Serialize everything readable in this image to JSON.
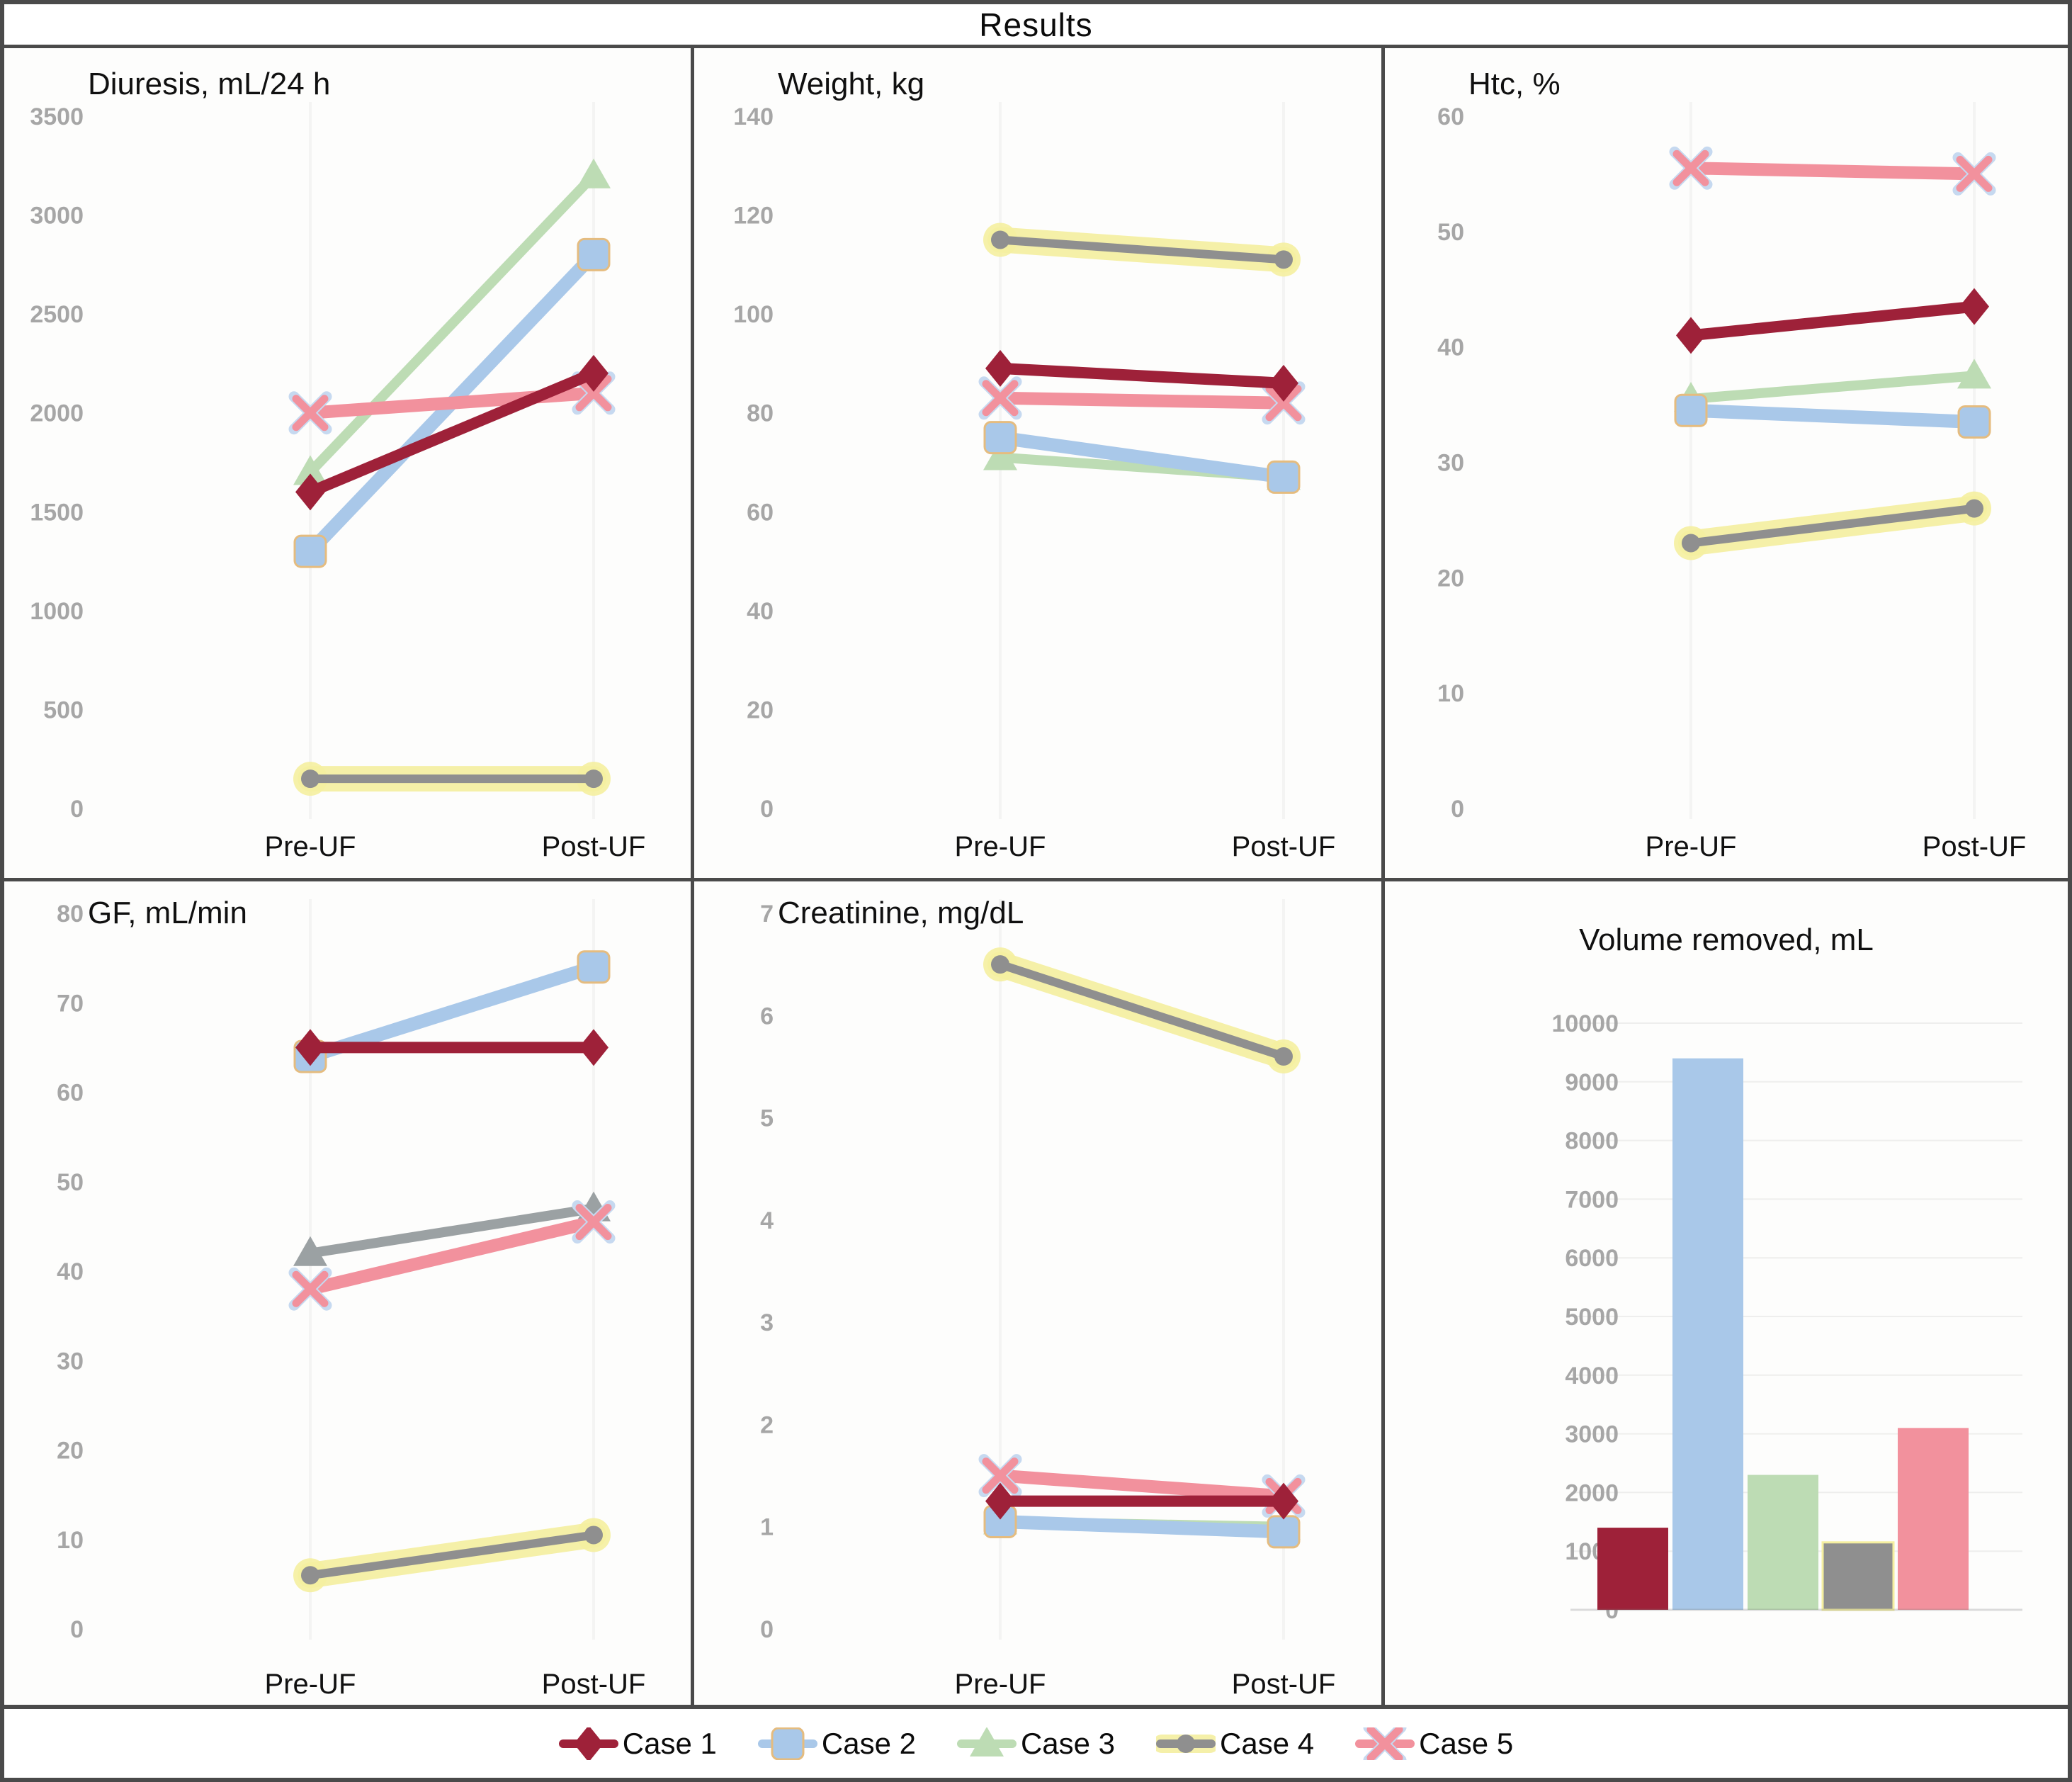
{
  "figure": {
    "title": "Results"
  },
  "legend": {
    "items": [
      {
        "label": "Case 1",
        "color": "#9e2139",
        "marker": "diamond"
      },
      {
        "label": "Case 2",
        "color": "#a9c8e9",
        "marker": "square"
      },
      {
        "label": "Case 3",
        "color": "#bddcb4",
        "marker": "triangle"
      },
      {
        "label": "Case 4",
        "color": "#8f8f8f",
        "marker": "circle",
        "highlight": "#f5efa0"
      },
      {
        "label": "Case 5",
        "color": "#f2919d",
        "marker": "x"
      }
    ]
  },
  "colors": {
    "border": "#4a4a4a",
    "tick_label": "#a6a6a6",
    "category_label": "#111111",
    "case2_marker_outline": "#e5bc7f",
    "case5_x_backing": "#c6d9f0",
    "case4_highlight": "#f5efa0",
    "gf_case3_rendered": "#9ba1a3"
  },
  "chart_data": [
    {
      "type": "line",
      "title": "Diuresis, mL/24 h",
      "x": [
        "Pre-UF",
        "Post-UF"
      ],
      "ylim": [
        0,
        3500
      ],
      "ytick_step": 500,
      "yticks": [
        0,
        500,
        1000,
        1500,
        2000,
        2500,
        3000,
        3500
      ],
      "grid": false,
      "legend_position": "bottom-shared",
      "series": [
        {
          "name": "Case 1",
          "values": [
            1600,
            2200
          ]
        },
        {
          "name": "Case 2",
          "values": [
            1300,
            2800
          ]
        },
        {
          "name": "Case 3",
          "values": [
            1700,
            3200
          ]
        },
        {
          "name": "Case 4",
          "values": [
            150,
            150
          ]
        },
        {
          "name": "Case 5",
          "values": [
            2000,
            2100
          ]
        }
      ]
    },
    {
      "type": "line",
      "title": "Weight, kg",
      "x": [
        "Pre-UF",
        "Post-UF"
      ],
      "ylim": [
        0,
        140
      ],
      "ytick_step": 20,
      "yticks": [
        0,
        20,
        40,
        60,
        80,
        100,
        120,
        140
      ],
      "grid": false,
      "series": [
        {
          "name": "Case 1",
          "values": [
            89,
            86
          ]
        },
        {
          "name": "Case 2",
          "values": [
            75,
            67
          ]
        },
        {
          "name": "Case 3",
          "values": [
            71,
            67
          ]
        },
        {
          "name": "Case 4",
          "values": [
            115,
            111
          ]
        },
        {
          "name": "Case 5",
          "values": [
            83,
            82
          ]
        }
      ]
    },
    {
      "type": "line",
      "title": "Htc, %",
      "x": [
        "Pre-UF",
        "Post-UF"
      ],
      "ylim": [
        0,
        60
      ],
      "ytick_step": 10,
      "yticks": [
        0,
        10,
        20,
        30,
        40,
        50,
        60
      ],
      "grid": false,
      "series": [
        {
          "name": "Case 1",
          "values": [
            41,
            43.5
          ]
        },
        {
          "name": "Case 2",
          "values": [
            34.5,
            33.5
          ]
        },
        {
          "name": "Case 3",
          "values": [
            35.5,
            37.5
          ]
        },
        {
          "name": "Case 4",
          "values": [
            23,
            26
          ]
        },
        {
          "name": "Case 5",
          "values": [
            55.5,
            55
          ]
        }
      ]
    },
    {
      "type": "line",
      "title": "GF, mL/min",
      "x": [
        "Pre-UF",
        "Post-UF"
      ],
      "ylim": [
        0,
        80
      ],
      "ytick_step": 10,
      "yticks": [
        0,
        10,
        20,
        30,
        40,
        50,
        60,
        70,
        80
      ],
      "grid": false,
      "series": [
        {
          "name": "Case 1",
          "values": [
            65,
            65
          ]
        },
        {
          "name": "Case 2",
          "values": [
            64,
            74
          ]
        },
        {
          "name": "Case 3",
          "values": [
            42,
            47
          ],
          "color": "#9ba1a3"
        },
        {
          "name": "Case 4",
          "values": [
            6,
            10.5
          ]
        },
        {
          "name": "Case 5",
          "values": [
            38,
            45.5
          ]
        }
      ]
    },
    {
      "type": "line",
      "title": "Creatinine, mg/dL",
      "x": [
        "Pre-UF",
        "Post-UF"
      ],
      "ylim": [
        0,
        7
      ],
      "ytick_step": 1,
      "yticks": [
        0,
        1,
        2,
        3,
        4,
        5,
        6,
        7
      ],
      "grid": false,
      "series": [
        {
          "name": "Case 1",
          "values": [
            1.25,
            1.25
          ]
        },
        {
          "name": "Case 2",
          "values": [
            1.05,
            0.95
          ]
        },
        {
          "name": "Case 3",
          "values": [
            1.05,
            1.0
          ]
        },
        {
          "name": "Case 4",
          "values": [
            6.5,
            5.6
          ]
        },
        {
          "name": "Case 5",
          "values": [
            1.5,
            1.3
          ]
        }
      ]
    },
    {
      "type": "bar",
      "title": "Volume removed, mL",
      "categories": [
        "Case 1",
        "Case 2",
        "Case 3",
        "Case 4",
        "Case 5"
      ],
      "values": [
        1400,
        9400,
        2300,
        1150,
        3100
      ],
      "ylim": [
        0,
        10000
      ],
      "ytick_step": 1000,
      "yticks": [
        0,
        1000,
        2000,
        3000,
        4000,
        5000,
        6000,
        7000,
        8000,
        9000,
        10000
      ],
      "grid": true
    }
  ]
}
